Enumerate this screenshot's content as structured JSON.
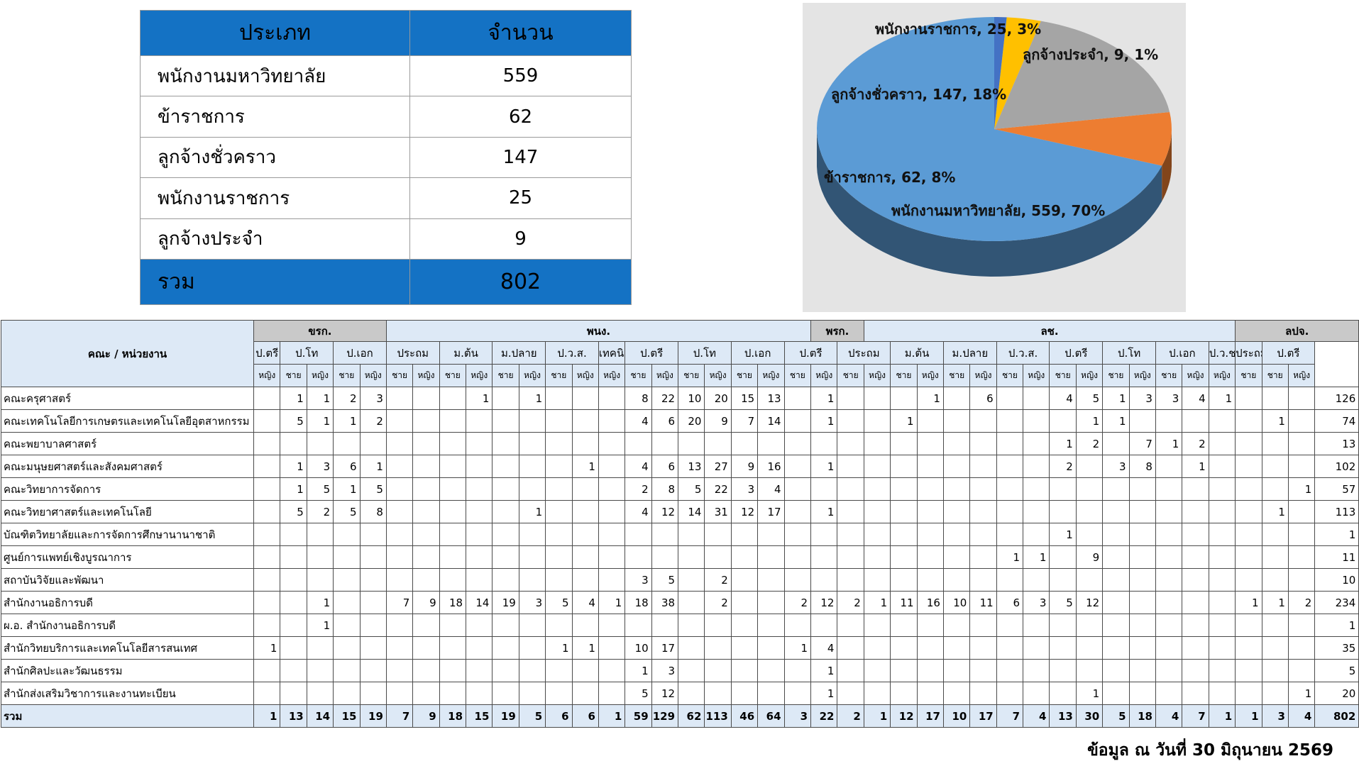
{
  "summary": {
    "header": [
      "ประเภท",
      "จำนวน"
    ],
    "rows": [
      {
        "label": "พนักงานมหาวิทยาลัย",
        "value": "559"
      },
      {
        "label": "ข้าราชการ",
        "value": "62"
      },
      {
        "label": "ลูกจ้างชั่วคราว",
        "value": "147"
      },
      {
        "label": "พนักงานราชการ",
        "value": "25"
      },
      {
        "label": "ลูกจ้างประจำ",
        "value": "9"
      }
    ],
    "total": {
      "label": "รวม",
      "value": "802"
    }
  },
  "chart_data": {
    "type": "pie",
    "slices": [
      {
        "label": "พนักงานมหาวิทยาลัย, 559, 70%",
        "value": 559,
        "color": "#5b9bd5"
      },
      {
        "label": "ข้าราชการ, 62, 8%",
        "value": 62,
        "color": "#ed7d31"
      },
      {
        "label": "ลูกจ้างชั่วคราว, 147, 18%",
        "value": 147,
        "color": "#a5a5a5"
      },
      {
        "label": "พนักงานราชการ, 25, 3%",
        "value": 25,
        "color": "#ffc000"
      },
      {
        "label": "ลูกจ้างประจำ, 9, 1%",
        "value": 9,
        "color": "#4472c4"
      }
    ],
    "background": "#e4e4e4",
    "title": "",
    "legend": "none"
  },
  "detail": {
    "corner": "คณะ / หน่วยงาน",
    "total_header": "รวม",
    "groups": [
      {
        "label": "ขรก.",
        "span": 5,
        "gray": true
      },
      {
        "label": "พนง.",
        "span": 16,
        "gray": false
      },
      {
        "label": "พรก.",
        "span": 2,
        "gray": true
      },
      {
        "label": "ลช.",
        "span": 14,
        "gray": false
      },
      {
        "label": "ลปจ.",
        "span": 4,
        "gray": true
      }
    ],
    "levels": [
      {
        "label": "ป.ตรี",
        "span": 1
      },
      {
        "label": "ป.โท",
        "span": 2
      },
      {
        "label": "ป.เอก",
        "span": 2
      },
      {
        "label": "ประถม",
        "span": 2
      },
      {
        "label": "ม.ต้น",
        "span": 2
      },
      {
        "label": "ม.ปลาย",
        "span": 2
      },
      {
        "label": "ป.ว.ส.",
        "span": 2
      },
      {
        "label": "เทคนิค",
        "span": 1
      },
      {
        "label": "ป.ตรี",
        "span": 2
      },
      {
        "label": "ป.โท",
        "span": 2
      },
      {
        "label": "ป.เอก",
        "span": 2
      },
      {
        "label": "ป.ตรี",
        "span": 2
      },
      {
        "label": "ประถม",
        "span": 2
      },
      {
        "label": "ม.ต้น",
        "span": 2
      },
      {
        "label": "ม.ปลาย",
        "span": 2
      },
      {
        "label": "ป.ว.ส.",
        "span": 2
      },
      {
        "label": "ป.ตรี",
        "span": 2
      },
      {
        "label": "ป.โท",
        "span": 2
      },
      {
        "label": "ป.เอก",
        "span": 2
      },
      {
        "label": "ป.ว.ช.",
        "span": 1
      },
      {
        "label": "ประถม",
        "span": 1
      },
      {
        "label": "ป.ตรี",
        "span": 2
      }
    ],
    "genders": [
      "หญิง",
      "ชาย",
      "หญิง",
      "ชาย",
      "หญิง",
      "ชาย",
      "หญิง",
      "ชาย",
      "หญิง",
      "ชาย",
      "หญิง",
      "ชาย",
      "หญิง",
      "หญิง",
      "ชาย",
      "หญิง",
      "ชาย",
      "หญิง",
      "ชาย",
      "หญิง",
      "ชาย",
      "หญิง",
      "ชาย",
      "หญิง",
      "ชาย",
      "หญิง",
      "ชาย",
      "หญิง",
      "ชาย",
      "หญิง",
      "ชาย",
      "หญิง",
      "ชาย",
      "หญิง",
      "ชาย",
      "หญิง",
      "หญิง",
      "ชาย",
      "ชาย",
      "หญิง"
    ],
    "rows": [
      {
        "unit": "คณะครุศาสตร์",
        "cells": [
          "",
          "1",
          "1",
          "2",
          "3",
          "",
          "",
          "",
          "1",
          "",
          "1",
          "",
          "",
          "",
          "8",
          "22",
          "10",
          "20",
          "15",
          "13",
          "",
          "1",
          "",
          "",
          "",
          "1",
          "",
          "6",
          "",
          "",
          "4",
          "5",
          "1",
          "3",
          "3",
          "4",
          "1",
          "",
          "",
          ""
        ],
        "total": "126"
      },
      {
        "unit": "คณะเทคโนโลยีการเกษตรและเทคโนโลยีอุตสาหกรรม",
        "cells": [
          "",
          "5",
          "1",
          "1",
          "2",
          "",
          "",
          "",
          "",
          "",
          "",
          "",
          "",
          "",
          "4",
          "6",
          "20",
          "9",
          "7",
          "14",
          "",
          "1",
          "",
          "",
          "1",
          "",
          "",
          "",
          "",
          "",
          "",
          "1",
          "1",
          "",
          "",
          "",
          "",
          "",
          "1",
          ""
        ],
        "total": "74"
      },
      {
        "unit": "คณะพยาบาลศาสตร์",
        "cells": [
          "",
          "",
          "",
          "",
          "",
          "",
          "",
          "",
          "",
          "",
          "",
          "",
          "",
          "",
          "",
          "",
          "",
          "",
          "",
          "",
          "",
          "",
          "",
          "",
          "",
          "",
          "",
          "",
          "",
          "",
          "1",
          "2",
          "",
          "7",
          "1",
          "2",
          "",
          "",
          "",
          ""
        ],
        "total": "13"
      },
      {
        "unit": "คณะมนุษยศาสตร์และสังคมศาสตร์",
        "cells": [
          "",
          "1",
          "3",
          "6",
          "1",
          "",
          "",
          "",
          "",
          "",
          "",
          "",
          "1",
          "",
          "4",
          "6",
          "13",
          "27",
          "9",
          "16",
          "",
          "1",
          "",
          "",
          "",
          "",
          "",
          "",
          "",
          "",
          "2",
          "",
          "3",
          "8",
          "",
          "1",
          "",
          "",
          "",
          ""
        ],
        "total": "102"
      },
      {
        "unit": "คณะวิทยาการจัดการ",
        "cells": [
          "",
          "1",
          "5",
          "1",
          "5",
          "",
          "",
          "",
          "",
          "",
          "",
          "",
          "",
          "",
          "2",
          "8",
          "5",
          "22",
          "3",
          "4",
          "",
          "",
          "",
          "",
          "",
          "",
          "",
          "",
          "",
          "",
          "",
          "",
          "",
          "",
          "",
          "",
          "",
          "",
          "",
          "1"
        ],
        "total": "57"
      },
      {
        "unit": "คณะวิทยาศาสตร์และเทคโนโลยี",
        "cells": [
          "",
          "5",
          "2",
          "5",
          "8",
          "",
          "",
          "",
          "",
          "",
          "1",
          "",
          "",
          "",
          "4",
          "12",
          "14",
          "31",
          "12",
          "17",
          "",
          "1",
          "",
          "",
          "",
          "",
          "",
          "",
          "",
          "",
          "",
          "",
          "",
          "",
          "",
          "",
          "",
          "",
          "1",
          ""
        ],
        "total": "113"
      },
      {
        "unit": "บัณฑิตวิทยาลัยและการจัดการศึกษานานาชาติ",
        "cells": [
          "",
          "",
          "",
          "",
          "",
          "",
          "",
          "",
          "",
          "",
          "",
          "",
          "",
          "",
          "",
          "",
          "",
          "",
          "",
          "",
          "",
          "",
          "",
          "",
          "",
          "",
          "",
          "",
          "",
          "",
          "1",
          "",
          "",
          "",
          "",
          "",
          "",
          "",
          "",
          ""
        ],
        "total": "1"
      },
      {
        "unit": "ศูนย์การแพทย์เชิงบูรณาการ",
        "cells": [
          "",
          "",
          "",
          "",
          "",
          "",
          "",
          "",
          "",
          "",
          "",
          "",
          "",
          "",
          "",
          "",
          "",
          "",
          "",
          "",
          "",
          "",
          "",
          "",
          "",
          "",
          "",
          "",
          "1",
          "1",
          "",
          "9",
          "",
          "",
          "",
          "",
          "",
          "",
          "",
          ""
        ],
        "total": "11"
      },
      {
        "unit": "สถาบันวิจัยและพัฒนา",
        "cells": [
          "",
          "",
          "",
          "",
          "",
          "",
          "",
          "",
          "",
          "",
          "",
          "",
          "",
          "",
          "3",
          "5",
          "",
          "2",
          "",
          "",
          "",
          "",
          "",
          "",
          "",
          "",
          "",
          "",
          "",
          "",
          "",
          "",
          "",
          "",
          "",
          "",
          "",
          "",
          "",
          ""
        ],
        "total": "10"
      },
      {
        "unit": "สำนักงานอธิการบดี",
        "cells": [
          "",
          "",
          "1",
          "",
          "",
          "7",
          "9",
          "18",
          "14",
          "19",
          "3",
          "5",
          "4",
          "1",
          "18",
          "38",
          "",
          "2",
          "",
          "",
          "2",
          "12",
          "2",
          "1",
          "11",
          "16",
          "10",
          "11",
          "6",
          "3",
          "5",
          "12",
          "",
          "",
          "",
          "",
          "",
          "1",
          "1",
          "2"
        ],
        "total": "234"
      },
      {
        "unit": "ผ.อ. สำนักงานอธิการบดี",
        "cells": [
          "",
          "",
          "1",
          "",
          "",
          "",
          "",
          "",
          "",
          "",
          "",
          "",
          "",
          "",
          "",
          "",
          "",
          "",
          "",
          "",
          "",
          "",
          "",
          "",
          "",
          "",
          "",
          "",
          "",
          "",
          "",
          "",
          "",
          "",
          "",
          "",
          "",
          "",
          "",
          ""
        ],
        "total": "1"
      },
      {
        "unit": "สำนักวิทยบริการและเทคโนโลยีสารสนเทศ",
        "cells": [
          "1",
          "",
          "",
          "",
          "",
          "",
          "",
          "",
          "",
          "",
          "",
          "1",
          "1",
          "",
          "10",
          "17",
          "",
          "",
          "",
          "",
          "1",
          "4",
          "",
          "",
          "",
          "",
          "",
          "",
          "",
          "",
          "",
          "",
          "",
          "",
          "",
          "",
          "",
          "",
          "",
          ""
        ],
        "total": "35"
      },
      {
        "unit": "สำนักศิลปะและวัฒนธรรม",
        "cells": [
          "",
          "",
          "",
          "",
          "",
          "",
          "",
          "",
          "",
          "",
          "",
          "",
          "",
          "",
          "1",
          "3",
          "",
          "",
          "",
          "",
          "",
          "1",
          "",
          "",
          "",
          "",
          "",
          "",
          "",
          "",
          "",
          "",
          "",
          "",
          "",
          "",
          "",
          "",
          "",
          ""
        ],
        "total": "5"
      },
      {
        "unit": "สำนักส่งเสริมวิชาการและงานทะเบียน",
        "cells": [
          "",
          "",
          "",
          "",
          "",
          "",
          "",
          "",
          "",
          "",
          "",
          "",
          "",
          "",
          "5",
          "12",
          "",
          "",
          "",
          "",
          "",
          "1",
          "",
          "",
          "",
          "",
          "",
          "",
          "",
          "",
          "",
          "1",
          "",
          "",
          "",
          "",
          "",
          "",
          "",
          "1"
        ],
        "total": "20"
      }
    ],
    "sum_row": {
      "unit": "รวม",
      "cells": [
        "1",
        "13",
        "14",
        "15",
        "19",
        "7",
        "9",
        "18",
        "15",
        "19",
        "5",
        "6",
        "6",
        "1",
        "59",
        "129",
        "62",
        "113",
        "46",
        "64",
        "3",
        "22",
        "2",
        "1",
        "12",
        "17",
        "10",
        "17",
        "7",
        "4",
        "13",
        "30",
        "5",
        "18",
        "4",
        "7",
        "1",
        "1",
        "3",
        "4"
      ],
      "total": "802"
    }
  },
  "footnote": "ข้อมูล ณ วันที่ 30 มิถุนายน 2569"
}
